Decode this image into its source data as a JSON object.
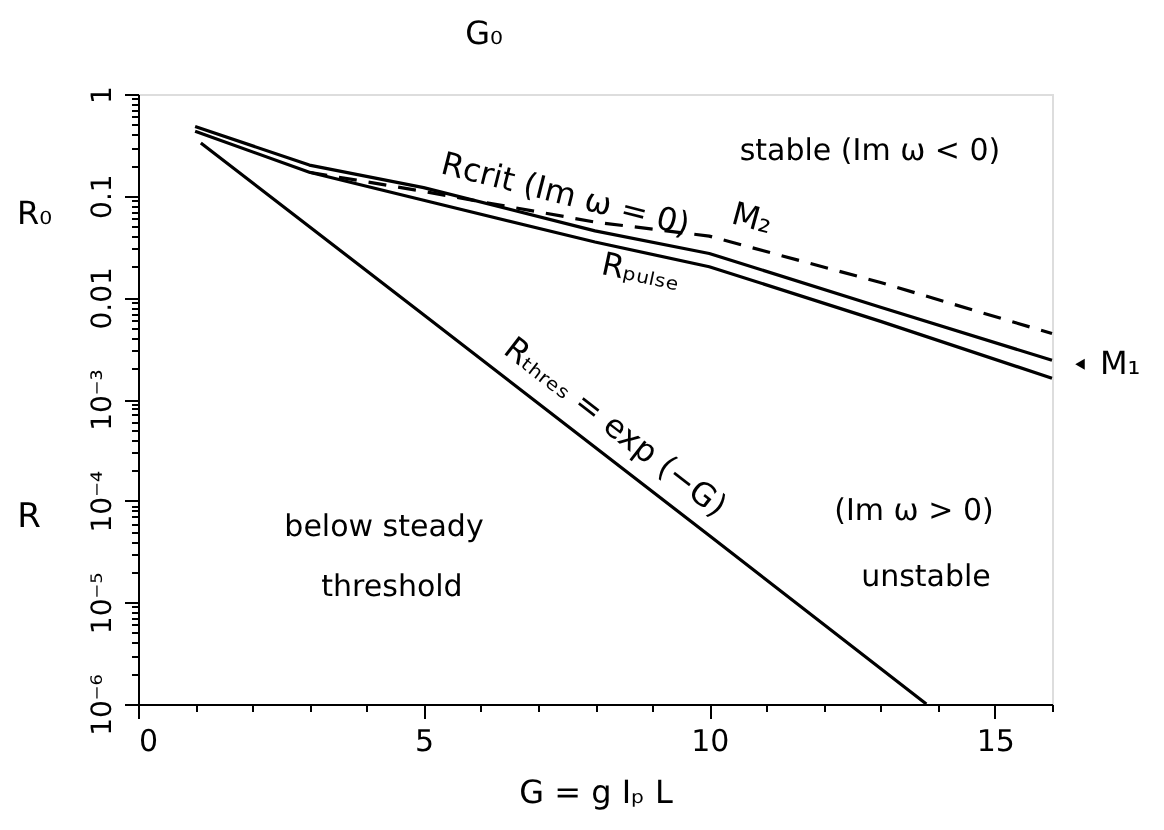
{
  "chart_data": {
    "type": "line",
    "xlabel": "G = g Iₚ L",
    "ylabel": "R",
    "log": "y",
    "grid": false,
    "xlim": [
      0,
      16
    ],
    "ylim": [
      1e-06,
      1
    ],
    "xticks": [
      0,
      {
        "value": 1,
        "label": null
      },
      {
        "value": 2,
        "label": null
      },
      {
        "value": 3,
        "label": null
      },
      {
        "value": 4,
        "label": null
      },
      5,
      {
        "value": 6,
        "label": null
      },
      {
        "value": 7,
        "label": null
      },
      {
        "value": 8,
        "label": null
      },
      {
        "value": 9,
        "label": null
      },
      10,
      {
        "value": 11,
        "label": null
      },
      {
        "value": 12,
        "label": null
      },
      {
        "value": 13,
        "label": null
      },
      {
        "value": 14,
        "label": null
      },
      15,
      {
        "value": 16,
        "label": null
      }
    ],
    "yticks": [
      {
        "value": 1e-06,
        "label": "10⁻⁶"
      },
      {
        "value": 2e-06,
        "label": null
      },
      {
        "value": 3e-06,
        "label": null
      },
      {
        "value": 4e-06,
        "label": null
      },
      {
        "value": 5e-06,
        "label": null
      },
      {
        "value": 6e-06,
        "label": null
      },
      {
        "value": 7e-06,
        "label": null
      },
      {
        "value": 8e-06,
        "label": null
      },
      {
        "value": 9e-06,
        "label": null
      },
      {
        "value": 1e-05,
        "label": "10⁻⁵"
      },
      {
        "value": 2e-05,
        "label": null
      },
      {
        "value": 3e-05,
        "label": null
      },
      {
        "value": 4e-05,
        "label": null
      },
      {
        "value": 5e-05,
        "label": null
      },
      {
        "value": 6e-05,
        "label": null
      },
      {
        "value": 7e-05,
        "label": null
      },
      {
        "value": 8e-05,
        "label": null
      },
      {
        "value": 9e-05,
        "label": null
      },
      {
        "value": 0.0001,
        "label": "10⁻⁴"
      },
      {
        "value": 0.0002,
        "label": null
      },
      {
        "value": 0.0003,
        "label": null
      },
      {
        "value": 0.0004,
        "label": null
      },
      {
        "value": 0.0005,
        "label": null
      },
      {
        "value": 0.0006,
        "label": null
      },
      {
        "value": 0.0007,
        "label": null
      },
      {
        "value": 0.0008,
        "label": null
      },
      {
        "value": 0.0009,
        "label": null
      },
      {
        "value": 0.001,
        "label": "10⁻³"
      },
      {
        "value": 0.002,
        "label": null
      },
      {
        "value": 0.003,
        "label": null
      },
      {
        "value": 0.004,
        "label": null
      },
      {
        "value": 0.005,
        "label": null
      },
      {
        "value": 0.006,
        "label": null
      },
      {
        "value": 0.007,
        "label": null
      },
      {
        "value": 0.008,
        "label": null
      },
      {
        "value": 0.009,
        "label": null
      },
      0.01,
      {
        "value": 0.02,
        "label": null
      },
      {
        "value": 0.03,
        "label": null
      },
      {
        "value": 0.04,
        "label": null
      },
      {
        "value": 0.05,
        "label": null
      },
      {
        "value": 0.06,
        "label": null
      },
      {
        "value": 0.07,
        "label": null
      },
      {
        "value": 0.08,
        "label": null
      },
      {
        "value": 0.09,
        "label": null
      },
      0.1,
      {
        "value": 0.2,
        "label": null
      },
      {
        "value": 0.3,
        "label": null
      },
      {
        "value": 0.4,
        "label": null
      },
      {
        "value": 0.5,
        "label": null
      },
      {
        "value": 0.6,
        "label": null
      },
      {
        "value": 0.7,
        "label": null
      },
      {
        "value": 0.8,
        "label": null
      },
      {
        "value": 0.9,
        "label": null
      },
      1
    ],
    "series": [
      {
        "name": "Rcrit (Im ω = 0)",
        "color": "#000000",
        "line_style": "solid",
        "x": [
          1,
          3,
          5,
          8,
          10,
          13,
          16
        ],
        "values": [
          0.48,
          0.2,
          0.12,
          0.045,
          0.027,
          0.008,
          0.0024
        ]
      },
      {
        "name": "Rₚᵤₗₛₑ",
        "color": "#000000",
        "line_style": "solid",
        "x": [
          1,
          3,
          5,
          8,
          10,
          13,
          16
        ],
        "values": [
          0.43,
          0.17,
          0.09,
          0.035,
          0.02,
          0.0058,
          0.0016
        ]
      },
      {
        "name": "M₂",
        "color": "#000000",
        "line_style": "dashed",
        "x": [
          3,
          5,
          8,
          10,
          13,
          16
        ],
        "values": [
          0.17,
          0.11,
          0.055,
          0.04,
          0.014,
          0.0044
        ]
      },
      {
        "name": "Rₜₕᵣₑₛ = exp (−G)",
        "color": "#000000",
        "line_style": "solid",
        "x": [
          1.1,
          5,
          10,
          13.8
        ],
        "values": [
          0.33,
          0.00674,
          4.54e-05,
          1e-06
        ]
      }
    ],
    "annotations": [
      "stable (Im ω < 0)",
      "(Im ω > 0)",
      "unstable",
      "below steady",
      "threshold",
      "G₀",
      "R₀",
      {
        "text": "M₁",
        "x": 16,
        "y": 0.0022
      }
    ]
  }
}
